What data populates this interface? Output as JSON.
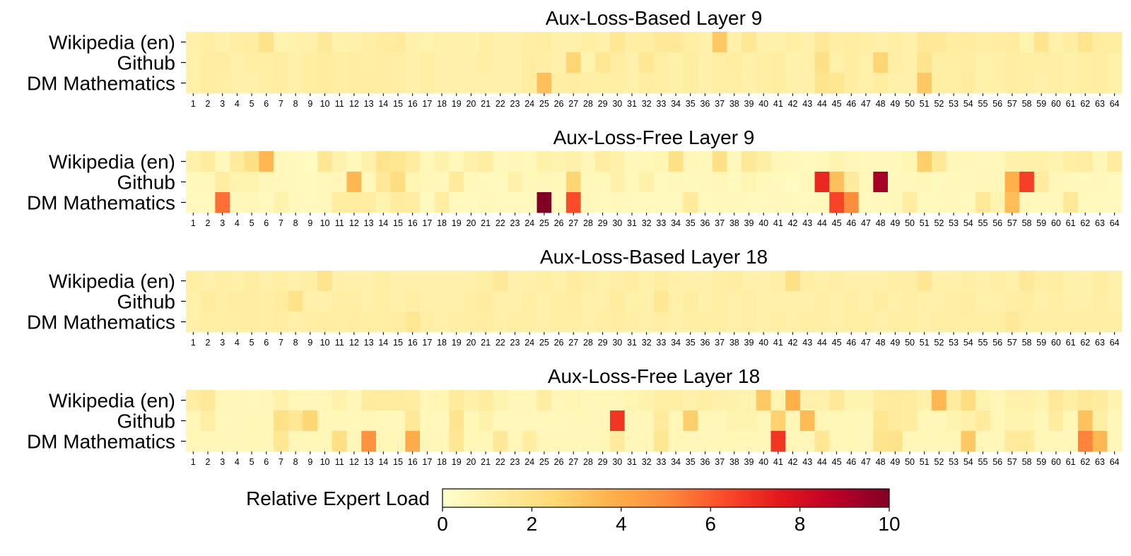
{
  "chart_data": {
    "type": "heatmap",
    "colormap": "YlOrRd",
    "rows": [
      "Wikipedia (en)",
      "Github",
      "DM Mathematics"
    ],
    "columns": [
      1,
      2,
      3,
      4,
      5,
      6,
      7,
      8,
      9,
      10,
      11,
      12,
      13,
      14,
      15,
      16,
      17,
      18,
      19,
      20,
      21,
      22,
      23,
      24,
      25,
      26,
      27,
      28,
      29,
      30,
      31,
      32,
      33,
      34,
      35,
      36,
      37,
      38,
      39,
      40,
      41,
      42,
      43,
      44,
      45,
      46,
      47,
      48,
      49,
      50,
      51,
      52,
      53,
      54,
      55,
      56,
      57,
      58,
      59,
      60,
      61,
      62,
      63,
      64
    ],
    "colorbar": {
      "label": "Relative Expert Load",
      "min": 0,
      "max": 10,
      "ticks": [
        0,
        2,
        4,
        6,
        8,
        10
      ]
    },
    "panels": [
      {
        "title": "Aux-Loss-Based Layer 9",
        "values": [
          [
            1.0,
            1.1,
            0.9,
            1.1,
            1.2,
            1.9,
            0.8,
            0.9,
            1.0,
            1.5,
            0.9,
            1.0,
            1.1,
            1.3,
            1.4,
            0.9,
            0.8,
            1.0,
            1.0,
            0.9,
            1.1,
            1.0,
            1.0,
            1.1,
            1.2,
            0.9,
            1.0,
            1.1,
            1.0,
            1.6,
            1.1,
            1.2,
            1.5,
            1.5,
            1.1,
            1.0,
            3.0,
            1.0,
            1.6,
            1.0,
            1.0,
            1.1,
            1.0,
            1.5,
            1.1,
            1.2,
            1.1,
            1.0,
            1.1,
            1.0,
            1.5,
            1.5,
            1.2,
            1.3,
            1.1,
            1.2,
            1.3,
            0.8,
            1.8,
            1.0,
            1.2,
            1.8,
            1.3,
            1.2
          ],
          [
            1.0,
            1.2,
            1.2,
            1.0,
            1.1,
            1.1,
            1.2,
            1.0,
            1.2,
            1.3,
            1.1,
            1.2,
            1.1,
            1.2,
            1.1,
            1.0,
            1.1,
            1.0,
            1.0,
            1.0,
            1.1,
            1.0,
            1.0,
            1.2,
            1.1,
            1.0,
            2.6,
            0.8,
            1.6,
            1.2,
            1.0,
            1.6,
            1.1,
            1.0,
            1.2,
            1.0,
            1.1,
            1.2,
            1.0,
            1.1,
            1.2,
            0.9,
            1.0,
            2.0,
            1.0,
            1.2,
            1.0,
            2.6,
            1.1,
            1.0,
            1.8,
            1.1,
            1.1,
            1.2,
            1.0,
            1.0,
            1.2,
            1.1,
            1.1,
            1.1,
            1.0,
            1.1,
            1.2,
            1.0
          ],
          [
            1.0,
            1.2,
            1.1,
            1.0,
            1.0,
            1.1,
            1.2,
            1.0,
            1.2,
            1.3,
            1.1,
            1.2,
            1.2,
            1.2,
            1.1,
            1.0,
            1.1,
            1.0,
            1.0,
            1.0,
            1.0,
            1.0,
            1.0,
            1.2,
            3.3,
            1.1,
            1.2,
            1.1,
            1.1,
            1.1,
            1.0,
            1.2,
            1.1,
            1.0,
            1.2,
            1.0,
            1.1,
            1.1,
            1.0,
            1.1,
            1.2,
            1.0,
            1.0,
            1.8,
            1.7,
            1.2,
            1.0,
            1.2,
            1.0,
            1.0,
            3.0,
            1.1,
            1.1,
            1.3,
            1.0,
            1.0,
            1.2,
            1.1,
            1.0,
            1.1,
            1.0,
            1.1,
            1.2,
            1.0
          ]
        ]
      },
      {
        "title": "Aux-Loss-Free Layer 9",
        "values": [
          [
            1.0,
            1.3,
            0.5,
            1.4,
            2.0,
            3.6,
            0.5,
            0.4,
            0.3,
            1.6,
            0.9,
            0.5,
            1.0,
            1.8,
            1.7,
            1.3,
            0.5,
            0.9,
            0.5,
            1.0,
            1.2,
            0.5,
            0.6,
            0.5,
            1.0,
            0.8,
            1.0,
            0.6,
            1.2,
            1.0,
            0.5,
            0.6,
            0.7,
            2.0,
            0.6,
            0.5,
            2.0,
            0.5,
            1.5,
            1.1,
            0.6,
            0.5,
            0.4,
            0.5,
            0.8,
            0.6,
            0.5,
            0.5,
            0.5,
            0.7,
            2.8,
            1.5,
            0.6,
            0.6,
            0.5,
            0.5,
            0.9,
            1.0,
            1.0,
            0.8,
            1.1,
            1.2,
            0.6,
            1.3
          ],
          [
            0.4,
            0.5,
            1.2,
            0.8,
            0.8,
            0.6,
            0.5,
            0.4,
            0.4,
            0.5,
            0.6,
            3.6,
            0.5,
            1.5,
            2.2,
            0.7,
            0.6,
            0.5,
            1.4,
            0.5,
            0.4,
            0.4,
            1.0,
            0.5,
            0.6,
            0.5,
            2.6,
            0.5,
            0.5,
            0.9,
            0.5,
            1.0,
            0.4,
            0.5,
            0.4,
            0.5,
            0.6,
            0.4,
            0.7,
            0.5,
            0.4,
            0.3,
            0.5,
            7.2,
            3.3,
            1.4,
            0.5,
            9.2,
            0.4,
            0.5,
            0.6,
            0.4,
            0.5,
            0.5,
            0.6,
            0.5,
            3.8,
            6.6,
            1.3,
            0.6,
            0.5,
            0.4,
            0.5,
            0.4
          ],
          [
            0.4,
            0.4,
            5.6,
            0.5,
            0.6,
            0.4,
            0.9,
            0.5,
            0.4,
            0.5,
            1.2,
            1.2,
            1.2,
            0.8,
            1.3,
            1.2,
            0.4,
            1.2,
            0.4,
            0.4,
            0.5,
            0.4,
            0.4,
            0.4,
            10.0,
            0.4,
            6.3,
            0.5,
            0.4,
            0.5,
            0.4,
            0.4,
            0.4,
            0.4,
            1.4,
            0.4,
            0.5,
            0.5,
            0.4,
            0.4,
            0.5,
            0.4,
            0.4,
            0.5,
            6.5,
            5.0,
            0.4,
            0.5,
            0.5,
            1.2,
            0.4,
            0.4,
            0.5,
            0.4,
            1.5,
            0.8,
            3.4,
            0.5,
            0.5,
            0.5,
            1.5,
            0.4,
            0.4,
            0.4
          ]
        ]
      },
      {
        "title": "Aux-Loss-Based Layer 18",
        "values": [
          [
            1.1,
            1.0,
            1.1,
            1.0,
            1.2,
            1.0,
            1.1,
            1.0,
            1.1,
            1.8,
            1.0,
            1.0,
            1.0,
            1.1,
            1.0,
            1.0,
            1.0,
            1.0,
            1.0,
            1.0,
            1.1,
            1.5,
            1.0,
            1.0,
            1.1,
            1.0,
            1.3,
            1.1,
            1.0,
            1.1,
            1.2,
            1.0,
            1.2,
            1.0,
            1.0,
            1.0,
            1.1,
            1.2,
            1.0,
            1.0,
            1.1,
            2.0,
            1.1,
            1.0,
            1.1,
            1.0,
            1.0,
            1.0,
            1.1,
            1.1,
            1.6,
            1.0,
            1.0,
            1.1,
            1.0,
            1.1,
            1.0,
            1.5,
            1.1,
            1.2,
            1.0,
            1.0,
            1.2,
            1.0
          ],
          [
            1.0,
            1.3,
            1.1,
            1.2,
            1.2,
            1.1,
            1.3,
            1.9,
            1.0,
            1.0,
            1.1,
            1.1,
            1.0,
            1.1,
            1.0,
            1.1,
            1.0,
            1.0,
            1.0,
            1.1,
            1.3,
            1.0,
            1.0,
            1.1,
            1.0,
            1.1,
            1.2,
            1.0,
            1.0,
            1.3,
            1.0,
            1.0,
            1.6,
            1.0,
            1.2,
            1.0,
            1.1,
            1.0,
            1.1,
            1.0,
            1.0,
            1.0,
            1.0,
            1.1,
            1.0,
            1.1,
            1.0,
            1.2,
            1.0,
            1.1,
            1.0,
            1.0,
            1.1,
            1.2,
            1.0,
            1.0,
            1.1,
            1.2,
            1.0,
            1.1,
            1.0,
            1.0,
            1.1,
            1.0
          ],
          [
            1.0,
            1.1,
            1.1,
            1.1,
            1.2,
            1.1,
            1.2,
            1.0,
            1.1,
            1.2,
            1.1,
            1.2,
            1.1,
            1.1,
            1.2,
            1.6,
            1.1,
            1.0,
            1.1,
            1.1,
            1.2,
            1.0,
            1.1,
            1.1,
            1.0,
            1.1,
            1.1,
            1.0,
            1.1,
            1.2,
            1.1,
            1.0,
            1.1,
            1.0,
            1.1,
            1.1,
            1.1,
            1.0,
            1.1,
            1.0,
            1.1,
            1.0,
            1.1,
            1.1,
            1.0,
            1.1,
            1.1,
            1.0,
            1.1,
            1.1,
            1.0,
            1.1,
            1.1,
            1.1,
            1.1,
            1.1,
            1.5,
            1.1,
            1.1,
            1.1,
            1.1,
            1.1,
            1.1,
            1.1
          ]
        ]
      },
      {
        "title": "Aux-Loss-Free Layer 18",
        "values": [
          [
            1.2,
            1.5,
            0.6,
            0.6,
            0.5,
            0.6,
            1.0,
            0.6,
            0.6,
            0.6,
            0.9,
            0.6,
            1.3,
            1.3,
            1.3,
            1.2,
            0.6,
            0.7,
            1.4,
            1.0,
            1.3,
            0.8,
            0.6,
            0.6,
            1.2,
            0.6,
            0.7,
            0.6,
            0.6,
            0.6,
            0.7,
            0.9,
            1.1,
            1.1,
            1.0,
            1.1,
            1.0,
            0.9,
            0.8,
            3.0,
            0.7,
            3.8,
            1.0,
            1.0,
            1.5,
            0.8,
            0.8,
            1.3,
            1.4,
            1.3,
            1.0,
            3.6,
            1.3,
            2.2,
            0.8,
            0.6,
            1.0,
            1.0,
            0.8,
            1.5,
            1.1,
            1.5,
            1.3,
            0.8
          ],
          [
            0.6,
            1.1,
            0.5,
            0.6,
            0.6,
            0.6,
            2.0,
            1.6,
            2.6,
            0.6,
            0.6,
            0.5,
            0.6,
            0.5,
            0.5,
            1.5,
            0.5,
            0.5,
            1.8,
            0.6,
            0.9,
            0.5,
            0.5,
            0.5,
            0.5,
            0.5,
            0.6,
            0.6,
            0.6,
            6.8,
            0.6,
            0.6,
            1.4,
            0.6,
            2.8,
            0.6,
            0.6,
            0.8,
            0.8,
            0.6,
            2.7,
            0.6,
            3.5,
            0.6,
            0.6,
            0.6,
            0.6,
            1.7,
            1.4,
            1.3,
            0.6,
            0.6,
            0.8,
            1.0,
            1.4,
            0.6,
            0.8,
            0.8,
            0.6,
            1.3,
            0.6,
            3.2,
            1.1,
            0.6
          ],
          [
            0.6,
            0.6,
            0.6,
            0.6,
            0.6,
            0.6,
            1.6,
            0.6,
            0.6,
            0.6,
            2.1,
            0.6,
            4.8,
            0.6,
            0.6,
            4.0,
            0.6,
            0.6,
            1.6,
            0.6,
            0.6,
            1.5,
            0.6,
            1.2,
            0.6,
            0.6,
            0.6,
            0.6,
            0.6,
            1.4,
            0.6,
            0.6,
            1.7,
            0.6,
            0.6,
            0.6,
            0.6,
            0.6,
            0.6,
            0.6,
            6.8,
            0.6,
            0.6,
            1.6,
            0.6,
            0.6,
            0.6,
            1.8,
            1.9,
            0.6,
            0.6,
            0.6,
            0.6,
            3.0,
            0.6,
            0.6,
            1.4,
            1.4,
            0.6,
            0.6,
            0.6,
            5.2,
            3.6,
            0.6
          ]
        ]
      }
    ]
  }
}
